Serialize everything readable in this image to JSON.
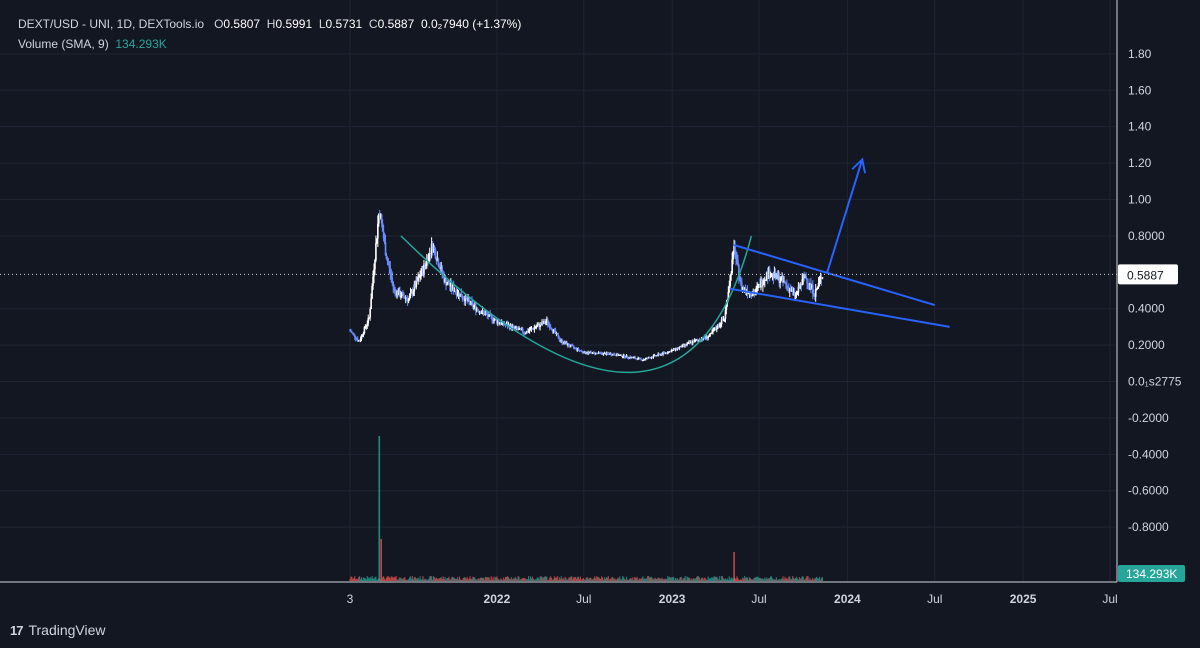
{
  "header": {
    "symbol": "DEXT/USD - UNI, 1D, DEXTools.io",
    "open_label": "O",
    "open": "0.5807",
    "high_label": "H",
    "high": "0.5991",
    "low_label": "L",
    "low": "0.5731",
    "close_label": "C",
    "close": "0.5887",
    "change": "0.0₂7940 (+1.37%)"
  },
  "volume_legend": {
    "label": "Volume (SMA, 9)",
    "value": "134.293K"
  },
  "price_marker": "0.5887",
  "volume_marker": "134.293K",
  "footer": {
    "brand": "TradingView",
    "logo": "17"
  },
  "colors": {
    "background": "#131722",
    "grid": "#1f2433",
    "candle_up": "#ffffff",
    "candle_down": "#6b8cff",
    "drawing": "#2962ff",
    "cup_curve": "#26a69a",
    "volume_up": "#26a69a",
    "volume_down": "#ef5350"
  },
  "chart_data": {
    "type": "candlestick",
    "title": "DEXT/USD - UNI, 1D, DEXTools.io",
    "x_ticks": [
      "3",
      "2022",
      "Jul",
      "2023",
      "Jul",
      "2024",
      "Jul",
      "2025",
      "Jul"
    ],
    "x_tick_dates": [
      "2021-03-01",
      "2022-01-01",
      "2022-07-01",
      "2023-01-01",
      "2023-07-01",
      "2024-01-01",
      "2024-07-01",
      "2025-01-01",
      "2025-07-01"
    ],
    "x_range": [
      "2021-03-01",
      "2025-07-01"
    ],
    "y_ticks": [
      "1.80",
      "1.60",
      "1.40",
      "1.20",
      "1.00",
      "0.8000",
      "0.4000",
      "0.2000",
      "0.0₁s2775",
      "-0.2000",
      "-0.4000",
      "-0.6000",
      "-0.8000"
    ],
    "y_tick_values": [
      1.8,
      1.6,
      1.4,
      1.2,
      1.0,
      0.8,
      0.4,
      0.2,
      0.0,
      -0.2,
      -0.4,
      -0.6,
      -0.8
    ],
    "ylim": [
      -0.92,
      1.92
    ],
    "last_price": 0.5887,
    "price_path": [
      {
        "date": "2021-03-01",
        "value": 0.28
      },
      {
        "date": "2021-03-20",
        "value": 0.22
      },
      {
        "date": "2021-04-10",
        "value": 0.35
      },
      {
        "date": "2021-05-01",
        "value": 0.95
      },
      {
        "date": "2021-05-15",
        "value": 0.7
      },
      {
        "date": "2021-06-01",
        "value": 0.5
      },
      {
        "date": "2021-07-01",
        "value": 0.45
      },
      {
        "date": "2021-08-01",
        "value": 0.62
      },
      {
        "date": "2021-08-20",
        "value": 0.75
      },
      {
        "date": "2021-09-15",
        "value": 0.55
      },
      {
        "date": "2021-10-15",
        "value": 0.48
      },
      {
        "date": "2021-11-20",
        "value": 0.4
      },
      {
        "date": "2022-01-01",
        "value": 0.33
      },
      {
        "date": "2022-03-01",
        "value": 0.27
      },
      {
        "date": "2022-04-15",
        "value": 0.33
      },
      {
        "date": "2022-05-15",
        "value": 0.22
      },
      {
        "date": "2022-07-01",
        "value": 0.16
      },
      {
        "date": "2022-09-01",
        "value": 0.15
      },
      {
        "date": "2022-11-01",
        "value": 0.12
      },
      {
        "date": "2023-01-01",
        "value": 0.17
      },
      {
        "date": "2023-02-15",
        "value": 0.22
      },
      {
        "date": "2023-03-20",
        "value": 0.25
      },
      {
        "date": "2023-04-20",
        "value": 0.35
      },
      {
        "date": "2023-05-10",
        "value": 0.73
      },
      {
        "date": "2023-05-25",
        "value": 0.52
      },
      {
        "date": "2023-06-20",
        "value": 0.48
      },
      {
        "date": "2023-07-20",
        "value": 0.6
      },
      {
        "date": "2023-08-20",
        "value": 0.55
      },
      {
        "date": "2023-09-15",
        "value": 0.47
      },
      {
        "date": "2023-10-05",
        "value": 0.58
      },
      {
        "date": "2023-10-25",
        "value": 0.48
      },
      {
        "date": "2023-11-10",
        "value": 0.5887
      }
    ],
    "volume_spikes": [
      {
        "date": "2021-05-01",
        "value": 1.0
      },
      {
        "date": "2021-05-05",
        "value": 0.29
      },
      {
        "date": "2023-05-10",
        "value": 0.2
      }
    ],
    "drawings": {
      "cup": [
        {
          "date": "2021-06-15",
          "value": 0.8
        },
        {
          "date": "2022-10-01",
          "value": 0.05
        },
        {
          "date": "2023-06-15",
          "value": 0.8
        }
      ],
      "upper_line": [
        {
          "date": "2023-05-10",
          "value": 0.75
        },
        {
          "date": "2024-07-01",
          "value": 0.42
        }
      ],
      "lower_line": [
        {
          "date": "2023-05-01",
          "value": 0.51
        },
        {
          "date": "2024-08-01",
          "value": 0.3
        }
      ],
      "arrow": [
        {
          "date": "2023-11-20",
          "value": 0.6
        },
        {
          "date": "2024-02-01",
          "value": 1.22
        }
      ]
    }
  }
}
